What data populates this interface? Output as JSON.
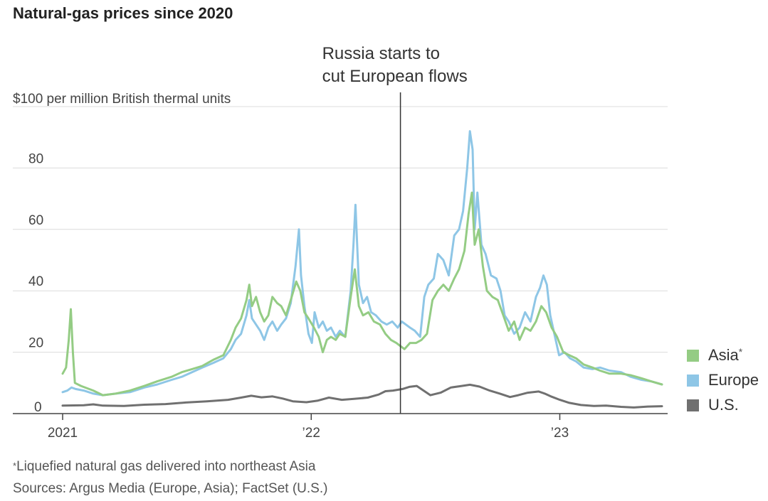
{
  "title": "Natural-gas prices since 2020",
  "annotation": {
    "line1": "Russia starts to",
    "line2": "cut European flows",
    "x": "2022-05-12"
  },
  "footnote_marker": "*",
  "footnote": "Liquefied natural gas delivered into northeast Asia",
  "sources": "Sources: Argus Media (Europe, Asia); FactSet (U.S.)",
  "legend": [
    {
      "label": "Asia",
      "marker": "*",
      "color": "#94cc84"
    },
    {
      "label": "Europe",
      "color": "#8ec6e6"
    },
    {
      "label": "U.S.",
      "color": "#707070"
    }
  ],
  "chart_data": {
    "type": "line",
    "title": "Natural-gas prices since 2020",
    "ylabel": "$100 per million British thermal units",
    "ylim": [
      0,
      100
    ],
    "yticks": [
      {
        "value": 100,
        "label": "$100 per million British thermal units"
      },
      {
        "value": 80,
        "label": "80"
      },
      {
        "value": 60,
        "label": "60"
      },
      {
        "value": 40,
        "label": "40"
      },
      {
        "value": 20,
        "label": "20"
      },
      {
        "value": 0,
        "label": "0"
      }
    ],
    "xlim": [
      "2021-01-01",
      "2023-05-31"
    ],
    "xticks": [
      {
        "value": "2021-01-01",
        "label": "2021"
      },
      {
        "value": "2022-01-01",
        "label": "’22"
      },
      {
        "value": "2023-01-01",
        "label": "’23"
      }
    ],
    "grid": true,
    "legend_position": "right",
    "series": [
      {
        "name": "Asia",
        "color": "#94cc84",
        "points": [
          [
            "2021-01-01",
            13
          ],
          [
            "2021-01-06",
            15
          ],
          [
            "2021-01-10",
            24
          ],
          [
            "2021-01-13",
            34
          ],
          [
            "2021-01-16",
            20
          ],
          [
            "2021-01-19",
            10
          ],
          [
            "2021-01-28",
            9
          ],
          [
            "2021-02-15",
            7.5
          ],
          [
            "2021-03-01",
            6
          ],
          [
            "2021-03-20",
            6.5
          ],
          [
            "2021-04-10",
            7.5
          ],
          [
            "2021-05-01",
            9
          ],
          [
            "2021-05-20",
            10.5
          ],
          [
            "2021-06-10",
            12
          ],
          [
            "2021-06-25",
            13.5
          ],
          [
            "2021-07-10",
            14.5
          ],
          [
            "2021-07-25",
            15.5
          ],
          [
            "2021-08-10",
            17.5
          ],
          [
            "2021-08-25",
            19
          ],
          [
            "2021-09-05",
            24
          ],
          [
            "2021-09-12",
            28
          ],
          [
            "2021-09-20",
            31
          ],
          [
            "2021-09-28",
            37
          ],
          [
            "2021-10-02",
            42
          ],
          [
            "2021-10-06",
            35
          ],
          [
            "2021-10-12",
            38
          ],
          [
            "2021-10-18",
            33
          ],
          [
            "2021-10-24",
            30
          ],
          [
            "2021-10-30",
            32
          ],
          [
            "2021-11-05",
            38
          ],
          [
            "2021-11-12",
            36
          ],
          [
            "2021-11-18",
            35
          ],
          [
            "2021-11-25",
            32
          ],
          [
            "2021-12-02",
            37
          ],
          [
            "2021-12-10",
            43
          ],
          [
            "2021-12-16",
            40
          ],
          [
            "2021-12-22",
            33
          ],
          [
            "2021-12-28",
            31
          ],
          [
            "2022-01-05",
            28
          ],
          [
            "2022-01-12",
            25
          ],
          [
            "2022-01-18",
            20
          ],
          [
            "2022-01-24",
            24
          ],
          [
            "2022-01-30",
            25
          ],
          [
            "2022-02-06",
            24
          ],
          [
            "2022-02-12",
            26
          ],
          [
            "2022-02-20",
            25
          ],
          [
            "2022-02-28",
            38
          ],
          [
            "2022-03-06",
            47
          ],
          [
            "2022-03-12",
            35
          ],
          [
            "2022-03-18",
            32
          ],
          [
            "2022-03-26",
            33
          ],
          [
            "2022-04-03",
            30
          ],
          [
            "2022-04-12",
            29
          ],
          [
            "2022-04-20",
            26
          ],
          [
            "2022-04-28",
            24
          ],
          [
            "2022-05-06",
            23
          ],
          [
            "2022-05-12",
            22
          ],
          [
            "2022-05-18",
            21
          ],
          [
            "2022-05-26",
            23
          ],
          [
            "2022-06-04",
            23
          ],
          [
            "2022-06-12",
            24
          ],
          [
            "2022-06-20",
            26
          ],
          [
            "2022-06-28",
            37
          ],
          [
            "2022-07-06",
            40
          ],
          [
            "2022-07-14",
            42
          ],
          [
            "2022-07-22",
            40
          ],
          [
            "2022-07-30",
            44
          ],
          [
            "2022-08-06",
            47
          ],
          [
            "2022-08-14",
            53
          ],
          [
            "2022-08-20",
            65
          ],
          [
            "2022-08-25",
            72
          ],
          [
            "2022-08-29",
            55
          ],
          [
            "2022-09-04",
            60
          ],
          [
            "2022-09-10",
            48
          ],
          [
            "2022-09-16",
            40
          ],
          [
            "2022-09-24",
            38
          ],
          [
            "2022-10-02",
            37
          ],
          [
            "2022-10-10",
            32
          ],
          [
            "2022-10-18",
            27
          ],
          [
            "2022-10-26",
            30
          ],
          [
            "2022-11-03",
            24
          ],
          [
            "2022-11-11",
            28
          ],
          [
            "2022-11-19",
            27
          ],
          [
            "2022-11-27",
            30
          ],
          [
            "2022-12-05",
            35
          ],
          [
            "2022-12-12",
            33
          ],
          [
            "2022-12-20",
            28
          ],
          [
            "2022-12-28",
            25
          ],
          [
            "2023-01-06",
            20
          ],
          [
            "2023-01-15",
            19
          ],
          [
            "2023-01-25",
            18
          ],
          [
            "2023-02-05",
            16
          ],
          [
            "2023-02-18",
            15
          ],
          [
            "2023-03-01",
            14
          ],
          [
            "2023-03-15",
            13
          ],
          [
            "2023-04-01",
            13
          ],
          [
            "2023-04-15",
            12.5
          ],
          [
            "2023-05-01",
            11.5
          ],
          [
            "2023-05-15",
            10.5
          ],
          [
            "2023-05-31",
            9.5
          ]
        ]
      },
      {
        "name": "Europe",
        "color": "#8ec6e6",
        "points": [
          [
            "2021-01-01",
            7
          ],
          [
            "2021-01-08",
            7.5
          ],
          [
            "2021-01-14",
            8.5
          ],
          [
            "2021-01-20",
            8
          ],
          [
            "2021-02-01",
            7.5
          ],
          [
            "2021-02-15",
            6.5
          ],
          [
            "2021-03-01",
            6
          ],
          [
            "2021-03-20",
            6.5
          ],
          [
            "2021-04-10",
            7
          ],
          [
            "2021-05-01",
            8.5
          ],
          [
            "2021-05-20",
            9.5
          ],
          [
            "2021-06-10",
            11
          ],
          [
            "2021-06-25",
            12
          ],
          [
            "2021-07-10",
            13.5
          ],
          [
            "2021-07-25",
            15
          ],
          [
            "2021-08-10",
            16.5
          ],
          [
            "2021-08-25",
            18
          ],
          [
            "2021-09-05",
            21
          ],
          [
            "2021-09-12",
            24
          ],
          [
            "2021-09-20",
            26
          ],
          [
            "2021-09-28",
            32
          ],
          [
            "2021-10-02",
            37
          ],
          [
            "2021-10-06",
            31
          ],
          [
            "2021-10-12",
            29
          ],
          [
            "2021-10-18",
            27
          ],
          [
            "2021-10-24",
            24
          ],
          [
            "2021-10-30",
            28
          ],
          [
            "2021-11-05",
            30
          ],
          [
            "2021-11-12",
            27
          ],
          [
            "2021-11-18",
            29
          ],
          [
            "2021-11-25",
            31
          ],
          [
            "2021-12-02",
            36
          ],
          [
            "2021-12-09",
            48
          ],
          [
            "2021-12-14",
            60
          ],
          [
            "2021-12-17",
            45
          ],
          [
            "2021-12-22",
            35
          ],
          [
            "2021-12-28",
            26
          ],
          [
            "2022-01-02",
            23
          ],
          [
            "2022-01-06",
            33
          ],
          [
            "2022-01-12",
            28
          ],
          [
            "2022-01-18",
            30
          ],
          [
            "2022-01-24",
            27
          ],
          [
            "2022-01-30",
            28
          ],
          [
            "2022-02-06",
            25
          ],
          [
            "2022-02-12",
            27
          ],
          [
            "2022-02-20",
            25
          ],
          [
            "2022-02-28",
            40
          ],
          [
            "2022-03-04",
            55
          ],
          [
            "2022-03-07",
            68
          ],
          [
            "2022-03-12",
            42
          ],
          [
            "2022-03-18",
            36
          ],
          [
            "2022-03-24",
            38
          ],
          [
            "2022-03-30",
            33
          ],
          [
            "2022-04-06",
            32
          ],
          [
            "2022-04-14",
            30
          ],
          [
            "2022-04-22",
            29
          ],
          [
            "2022-04-30",
            30
          ],
          [
            "2022-05-08",
            28
          ],
          [
            "2022-05-14",
            30
          ],
          [
            "2022-05-20",
            29
          ],
          [
            "2022-05-26",
            28
          ],
          [
            "2022-06-02",
            27
          ],
          [
            "2022-06-10",
            25
          ],
          [
            "2022-06-16",
            38
          ],
          [
            "2022-06-22",
            42
          ],
          [
            "2022-06-30",
            44
          ],
          [
            "2022-07-06",
            52
          ],
          [
            "2022-07-14",
            50
          ],
          [
            "2022-07-22",
            45
          ],
          [
            "2022-07-30",
            58
          ],
          [
            "2022-08-06",
            60
          ],
          [
            "2022-08-12",
            66
          ],
          [
            "2022-08-18",
            80
          ],
          [
            "2022-08-22",
            92
          ],
          [
            "2022-08-26",
            86
          ],
          [
            "2022-08-29",
            60
          ],
          [
            "2022-09-02",
            72
          ],
          [
            "2022-09-08",
            55
          ],
          [
            "2022-09-14",
            52
          ],
          [
            "2022-09-22",
            45
          ],
          [
            "2022-09-30",
            44
          ],
          [
            "2022-10-06",
            40
          ],
          [
            "2022-10-12",
            32
          ],
          [
            "2022-10-18",
            30
          ],
          [
            "2022-10-26",
            26
          ],
          [
            "2022-11-03",
            28
          ],
          [
            "2022-11-11",
            33
          ],
          [
            "2022-11-19",
            30
          ],
          [
            "2022-11-27",
            38
          ],
          [
            "2022-12-03",
            41
          ],
          [
            "2022-12-08",
            45
          ],
          [
            "2022-12-13",
            42
          ],
          [
            "2022-12-18",
            32
          ],
          [
            "2022-12-24",
            26
          ],
          [
            "2022-12-31",
            19
          ],
          [
            "2023-01-08",
            20
          ],
          [
            "2023-01-16",
            18
          ],
          [
            "2023-01-25",
            17
          ],
          [
            "2023-02-05",
            15
          ],
          [
            "2023-02-18",
            14.5
          ],
          [
            "2023-03-01",
            15
          ],
          [
            "2023-03-15",
            14
          ],
          [
            "2023-04-01",
            13.5
          ],
          [
            "2023-04-15",
            12
          ],
          [
            "2023-05-01",
            11
          ],
          [
            "2023-05-15",
            10.5
          ],
          [
            "2023-05-31",
            9.5
          ]
        ]
      },
      {
        "name": "U.S.",
        "color": "#707070",
        "points": [
          [
            "2021-01-01",
            2.6
          ],
          [
            "2021-02-01",
            2.7
          ],
          [
            "2021-02-15",
            3.0
          ],
          [
            "2021-03-01",
            2.6
          ],
          [
            "2021-04-01",
            2.5
          ],
          [
            "2021-05-01",
            2.9
          ],
          [
            "2021-06-01",
            3.1
          ],
          [
            "2021-07-01",
            3.6
          ],
          [
            "2021-08-01",
            4.0
          ],
          [
            "2021-09-01",
            4.5
          ],
          [
            "2021-09-20",
            5.2
          ],
          [
            "2021-10-05",
            5.8
          ],
          [
            "2021-10-20",
            5.3
          ],
          [
            "2021-11-05",
            5.6
          ],
          [
            "2021-11-20",
            4.9
          ],
          [
            "2021-12-05",
            4.0
          ],
          [
            "2021-12-25",
            3.7
          ],
          [
            "2022-01-10",
            4.2
          ],
          [
            "2022-01-27",
            5.2
          ],
          [
            "2022-02-15",
            4.5
          ],
          [
            "2022-03-05",
            4.8
          ],
          [
            "2022-03-25",
            5.2
          ],
          [
            "2022-04-10",
            6.2
          ],
          [
            "2022-04-20",
            7.3
          ],
          [
            "2022-05-01",
            7.5
          ],
          [
            "2022-05-15",
            8.0
          ],
          [
            "2022-05-25",
            8.7
          ],
          [
            "2022-06-05",
            9.0
          ],
          [
            "2022-06-15",
            7.5
          ],
          [
            "2022-06-25",
            6.0
          ],
          [
            "2022-07-10",
            6.8
          ],
          [
            "2022-07-25",
            8.5
          ],
          [
            "2022-08-10",
            9.0
          ],
          [
            "2022-08-22",
            9.4
          ],
          [
            "2022-09-05",
            8.8
          ],
          [
            "2022-09-20",
            7.5
          ],
          [
            "2022-10-05",
            6.5
          ],
          [
            "2022-10-20",
            5.4
          ],
          [
            "2022-11-01",
            6.0
          ],
          [
            "2022-11-15",
            6.8
          ],
          [
            "2022-12-01",
            7.2
          ],
          [
            "2022-12-10",
            6.5
          ],
          [
            "2022-12-20",
            5.5
          ],
          [
            "2023-01-01",
            4.5
          ],
          [
            "2023-01-15",
            3.5
          ],
          [
            "2023-02-01",
            2.8
          ],
          [
            "2023-02-20",
            2.5
          ],
          [
            "2023-03-10",
            2.6
          ],
          [
            "2023-04-01",
            2.2
          ],
          [
            "2023-04-20",
            2.0
          ],
          [
            "2023-05-10",
            2.3
          ],
          [
            "2023-05-31",
            2.4
          ]
        ]
      }
    ]
  }
}
